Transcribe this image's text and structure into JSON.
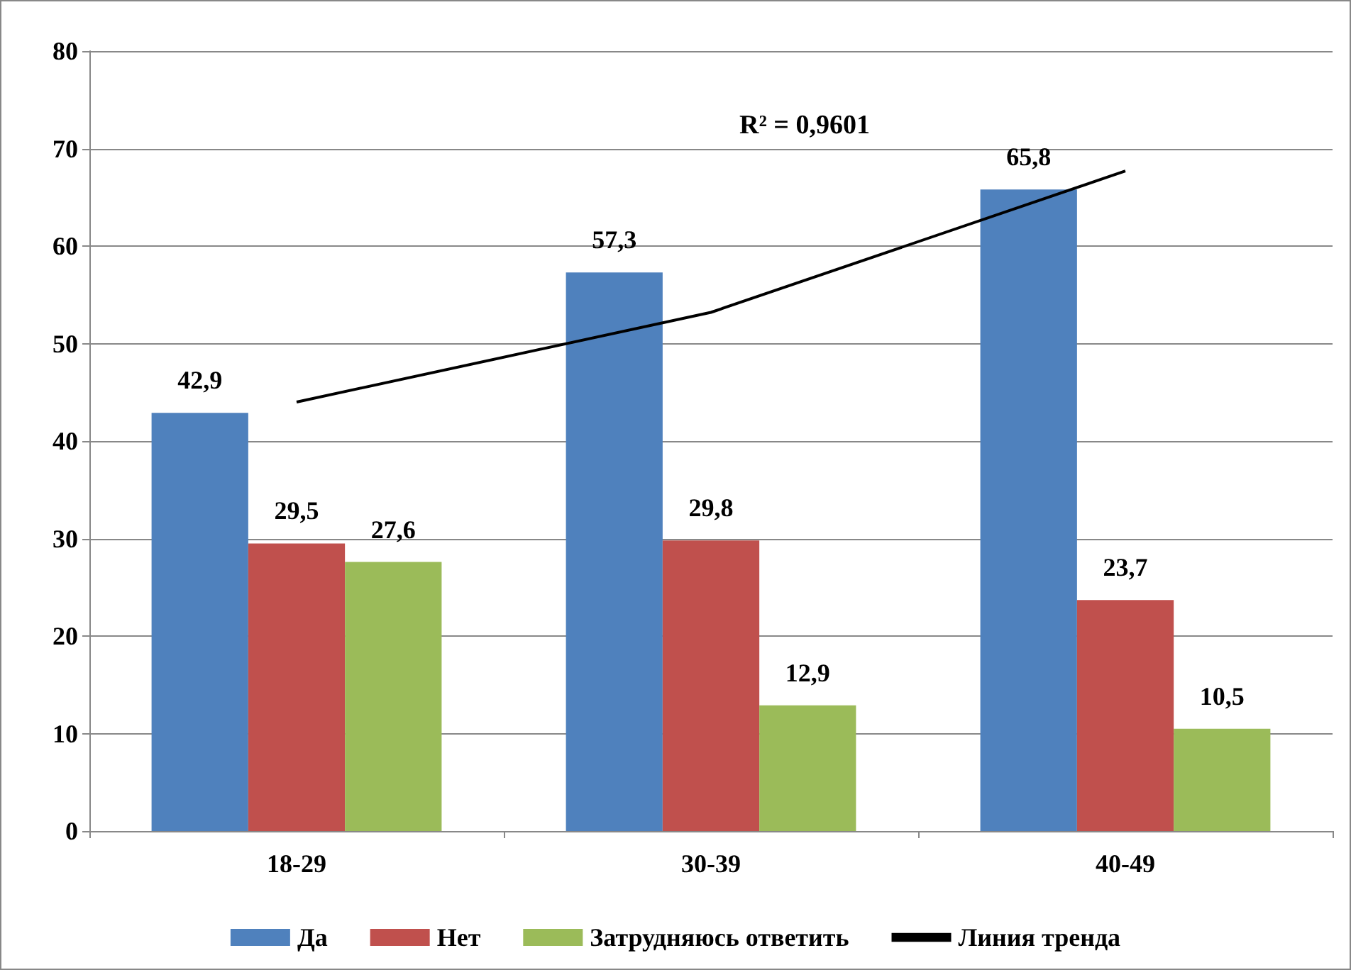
{
  "chart_data": {
    "type": "bar",
    "categories": [
      "18-29",
      "30-39",
      "40-49"
    ],
    "series": [
      {
        "name": "Да",
        "color": "#4f81bd",
        "values": [
          42.9,
          57.3,
          65.8
        ],
        "value_labels": [
          "42,9",
          "57,3",
          "65,8"
        ]
      },
      {
        "name": "Нет",
        "color": "#c0504d",
        "values": [
          29.5,
          29.8,
          23.7
        ],
        "value_labels": [
          "29,5",
          "29,8",
          "23,7"
        ]
      },
      {
        "name": "Затрудняюсь ответить",
        "color": "#9bbb59",
        "values": [
          27.6,
          12.9,
          10.5
        ],
        "value_labels": [
          "27,6",
          "12,9",
          "10,5"
        ]
      },
      {
        "name": "Линия тренда",
        "type": "line",
        "color": "#000000",
        "values": [
          44.0,
          53.2,
          67.7
        ],
        "marker": "none"
      }
    ],
    "annotations": [
      "R² = 0,9601"
    ],
    "ylim": [
      0,
      80
    ],
    "yticks": [
      0,
      10,
      20,
      30,
      40,
      50,
      60,
      70,
      80
    ],
    "grid": "y",
    "legend": "bottom"
  }
}
